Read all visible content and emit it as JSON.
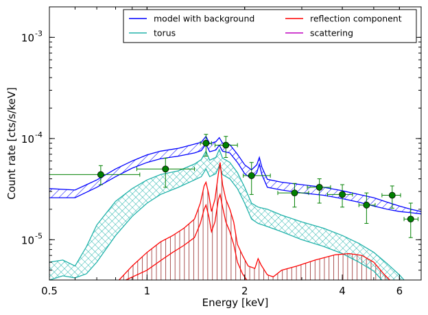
{
  "chart_data": {
    "type": "line",
    "xlabel": "Energy [keV]",
    "ylabel": "Count rate [cts/s/keV]",
    "x_scale": "log",
    "y_scale": "log",
    "xlim": [
      0.5,
      7.0
    ],
    "ylim": [
      4e-06,
      0.002
    ],
    "x_ticks": [
      {
        "value": 0.5,
        "label": "0.5"
      },
      {
        "value": 1,
        "label": "1"
      },
      {
        "value": 2,
        "label": "2"
      },
      {
        "value": 4,
        "label": "4"
      },
      {
        "value": 6,
        "label": "6"
      }
    ],
    "y_ticks": [
      {
        "value": 1e-05,
        "base": "10",
        "exp": "-5"
      },
      {
        "value": 0.0001,
        "base": "10",
        "exp": "-4"
      },
      {
        "value": 0.001,
        "base": "10",
        "exp": "-3"
      }
    ],
    "legend": {
      "placement": "top-right",
      "columns": 2,
      "entries": [
        {
          "label": "model with background",
          "color": "#0000ff"
        },
        {
          "label": "reflection component",
          "color": "#ff0000"
        },
        {
          "label": "torus",
          "color": "#20b2aa"
        },
        {
          "label": "scattering",
          "color": "#bf00bf"
        }
      ]
    },
    "colors": {
      "model": "#0000ff",
      "torus": "#20b2aa",
      "reflection": "#ff0000",
      "reflection_fill": "#a04040",
      "data": "#008000"
    },
    "data_points": [
      {
        "x": 0.72,
        "y": 4.4e-05,
        "xlo": 0.5,
        "xhi": 0.95,
        "ylo": 3.5e-05,
        "yhi": 5.4e-05
      },
      {
        "x": 1.14,
        "y": 5e-05,
        "xlo": 0.93,
        "xhi": 1.4,
        "ylo": 3.3e-05,
        "yhi": 6.4e-05
      },
      {
        "x": 1.52,
        "y": 9e-05,
        "xlo": 1.46,
        "xhi": 1.58,
        "ylo": 6.7e-05,
        "yhi": 0.00011
      },
      {
        "x": 1.75,
        "y": 8.6e-05,
        "xlo": 1.62,
        "xhi": 1.9,
        "ylo": 6.5e-05,
        "yhi": 0.000105
      },
      {
        "x": 2.1,
        "y": 4.3e-05,
        "xlo": 1.98,
        "xhi": 2.4,
        "ylo": 2.8e-05,
        "yhi": 5.8e-05
      },
      {
        "x": 2.85,
        "y": 2.9e-05,
        "xlo": 2.53,
        "xhi": 3.15,
        "ylo": 2.1e-05,
        "yhi": 3.6e-05
      },
      {
        "x": 3.4,
        "y": 3.3e-05,
        "xlo": 3.12,
        "xhi": 3.68,
        "ylo": 2.3e-05,
        "yhi": 4e-05
      },
      {
        "x": 4.0,
        "y": 2.8e-05,
        "xlo": 3.6,
        "xhi": 4.3,
        "ylo": 2.1e-05,
        "yhi": 3.5e-05
      },
      {
        "x": 4.75,
        "y": 2.2e-05,
        "xlo": 4.5,
        "xhi": 5.05,
        "ylo": 1.45e-05,
        "yhi": 2.9e-05
      },
      {
        "x": 5.7,
        "y": 2.75e-05,
        "xlo": 5.3,
        "xhi": 6.05,
        "ylo": 2.05e-05,
        "yhi": 3.4e-05
      },
      {
        "x": 6.5,
        "y": 1.6e-05,
        "xlo": 6.2,
        "xhi": 6.85,
        "ylo": 1.05e-05,
        "yhi": 2.3e-05
      }
    ],
    "series": [
      {
        "key": "model",
        "hatch": "diagonal",
        "upper": [
          [
            0.5,
            3.2e-05
          ],
          [
            0.6,
            3.1e-05
          ],
          [
            0.7,
            3.9e-05
          ],
          [
            0.8,
            5e-05
          ],
          [
            0.9,
            6e-05
          ],
          [
            1.0,
            6.9e-05
          ],
          [
            1.1,
            7.5e-05
          ],
          [
            1.25,
            8e-05
          ],
          [
            1.4,
            8.8e-05
          ],
          [
            1.47,
            9.2e-05
          ],
          [
            1.52,
            0.000105
          ],
          [
            1.56,
            8.9e-05
          ],
          [
            1.63,
            9.3e-05
          ],
          [
            1.67,
            0.000102
          ],
          [
            1.71,
            9e-05
          ],
          [
            1.8,
            8.7e-05
          ],
          [
            1.9,
            7e-05
          ],
          [
            2.0,
            5.5e-05
          ],
          [
            2.1,
            4.9e-05
          ],
          [
            2.18,
            5.5e-05
          ],
          [
            2.22,
            6.5e-05
          ],
          [
            2.26,
            5.2e-05
          ],
          [
            2.35,
            3.95e-05
          ],
          [
            2.6,
            3.7e-05
          ],
          [
            3.0,
            3.5e-05
          ],
          [
            3.5,
            3.3e-05
          ],
          [
            4.0,
            3.05e-05
          ],
          [
            4.5,
            2.8e-05
          ],
          [
            5.0,
            2.6e-05
          ],
          [
            5.5,
            2.35e-05
          ],
          [
            6.0,
            2.15e-05
          ],
          [
            6.5,
            2e-05
          ],
          [
            7.0,
            1.9e-05
          ]
        ],
        "lower": [
          [
            0.5,
            2.6e-05
          ],
          [
            0.6,
            2.6e-05
          ],
          [
            0.7,
            3.3e-05
          ],
          [
            0.8,
            4.2e-05
          ],
          [
            0.9,
            5.1e-05
          ],
          [
            1.0,
            5.8e-05
          ],
          [
            1.1,
            6.3e-05
          ],
          [
            1.25,
            6.7e-05
          ],
          [
            1.4,
            7.2e-05
          ],
          [
            1.47,
            7.6e-05
          ],
          [
            1.52,
            8.8e-05
          ],
          [
            1.56,
            7.4e-05
          ],
          [
            1.63,
            7.7e-05
          ],
          [
            1.67,
            8.6e-05
          ],
          [
            1.71,
            7.5e-05
          ],
          [
            1.8,
            7.2e-05
          ],
          [
            1.9,
            5.8e-05
          ],
          [
            2.0,
            4.5e-05
          ],
          [
            2.1,
            4e-05
          ],
          [
            2.18,
            4.6e-05
          ],
          [
            2.22,
            5.6e-05
          ],
          [
            2.26,
            4.4e-05
          ],
          [
            2.35,
            3.3e-05
          ],
          [
            2.6,
            3.1e-05
          ],
          [
            3.0,
            2.9e-05
          ],
          [
            3.5,
            2.75e-05
          ],
          [
            4.0,
            2.55e-05
          ],
          [
            4.5,
            2.35e-05
          ],
          [
            5.0,
            2.15e-05
          ],
          [
            5.5,
            2e-05
          ],
          [
            6.0,
            1.9e-05
          ],
          [
            6.5,
            1.85e-05
          ],
          [
            7.0,
            1.8e-05
          ]
        ]
      },
      {
        "key": "torus",
        "hatch": "cross",
        "upper": [
          [
            0.5,
            6e-06
          ],
          [
            0.55,
            6.3e-06
          ],
          [
            0.6,
            5.5e-06
          ],
          [
            0.65,
            8.5e-06
          ],
          [
            0.7,
            1.4e-05
          ],
          [
            0.8,
            2.4e-05
          ],
          [
            0.9,
            3.2e-05
          ],
          [
            1.0,
            3.9e-05
          ],
          [
            1.1,
            4.4e-05
          ],
          [
            1.25,
            4.8e-05
          ],
          [
            1.4,
            5.6e-05
          ],
          [
            1.47,
            6.2e-05
          ],
          [
            1.52,
            7.5e-05
          ],
          [
            1.56,
            6.1e-05
          ],
          [
            1.63,
            6.5e-05
          ],
          [
            1.67,
            7.8e-05
          ],
          [
            1.71,
            6.4e-05
          ],
          [
            1.8,
            5.8e-05
          ],
          [
            1.9,
            4.6e-05
          ],
          [
            2.0,
            3.3e-05
          ],
          [
            2.1,
            2.3e-05
          ],
          [
            2.2,
            2.1e-05
          ],
          [
            2.35,
            2e-05
          ],
          [
            2.6,
            1.75e-05
          ],
          [
            3.0,
            1.5e-05
          ],
          [
            3.5,
            1.3e-05
          ],
          [
            4.0,
            1.1e-05
          ],
          [
            4.5,
            9.2e-06
          ],
          [
            5.0,
            7.5e-06
          ],
          [
            5.5,
            5.8e-06
          ],
          [
            6.0,
            4.5e-06
          ],
          [
            6.2,
            4e-06
          ]
        ],
        "lower": [
          [
            0.5,
            4e-06
          ],
          [
            0.55,
            4.4e-06
          ],
          [
            0.6,
            4.2e-06
          ],
          [
            0.65,
            4.6e-06
          ],
          [
            0.7,
            6e-06
          ],
          [
            0.8,
            1.1e-05
          ],
          [
            0.9,
            1.7e-05
          ],
          [
            1.0,
            2.3e-05
          ],
          [
            1.1,
            2.8e-05
          ],
          [
            1.25,
            3.3e-05
          ],
          [
            1.4,
            3.9e-05
          ],
          [
            1.47,
            4.2e-05
          ],
          [
            1.52,
            5e-05
          ],
          [
            1.56,
            4.2e-05
          ],
          [
            1.63,
            4.5e-05
          ],
          [
            1.67,
            5.4e-05
          ],
          [
            1.71,
            4.4e-05
          ],
          [
            1.8,
            4e-05
          ],
          [
            1.9,
            3.2e-05
          ],
          [
            2.0,
            2.3e-05
          ],
          [
            2.1,
            1.6e-05
          ],
          [
            2.2,
            1.45e-05
          ],
          [
            2.35,
            1.35e-05
          ],
          [
            2.6,
            1.2e-05
          ],
          [
            3.0,
            1e-05
          ],
          [
            3.5,
            8.6e-06
          ],
          [
            4.0,
            7.3e-06
          ],
          [
            4.5,
            6e-06
          ],
          [
            5.0,
            4.9e-06
          ],
          [
            5.3,
            4e-06
          ]
        ]
      },
      {
        "key": "reflection",
        "line": [
          [
            0.82,
            4e-06
          ],
          [
            0.9,
            5.5e-06
          ],
          [
            1.0,
            7.5e-06
          ],
          [
            1.1,
            9.5e-06
          ],
          [
            1.2,
            1.1e-05
          ],
          [
            1.3,
            1.3e-05
          ],
          [
            1.4,
            1.6e-05
          ],
          [
            1.46,
            2.3e-05
          ],
          [
            1.5,
            3.4e-05
          ],
          [
            1.52,
            3.7e-05
          ],
          [
            1.55,
            2.8e-05
          ],
          [
            1.58,
            1.9e-05
          ],
          [
            1.62,
            2.5e-05
          ],
          [
            1.66,
            4.5e-05
          ],
          [
            1.68,
            5.8e-05
          ],
          [
            1.71,
            3.5e-05
          ],
          [
            1.75,
            2.5e-05
          ],
          [
            1.8,
            2e-05
          ],
          [
            1.85,
            1.5e-05
          ],
          [
            1.9,
            9e-06
          ],
          [
            1.97,
            7e-06
          ],
          [
            2.05,
            5.5e-06
          ],
          [
            2.15,
            5.2e-06
          ],
          [
            2.2,
            6.5e-06
          ],
          [
            2.25,
            5.6e-06
          ],
          [
            2.35,
            4.5e-06
          ],
          [
            2.45,
            4.3e-06
          ],
          [
            2.6,
            5e-06
          ],
          [
            2.9,
            5.5e-06
          ],
          [
            3.3,
            6.3e-06
          ],
          [
            3.8,
            7.1e-06
          ],
          [
            4.2,
            7.3e-06
          ],
          [
            4.6,
            7e-06
          ],
          [
            5.0,
            6e-06
          ],
          [
            5.4,
            4.5e-06
          ],
          [
            5.6,
            4e-06
          ]
        ],
        "lower": [
          [
            0.86,
            4e-06
          ],
          [
            1.0,
            5e-06
          ],
          [
            1.1,
            6.2e-06
          ],
          [
            1.2,
            7.5e-06
          ],
          [
            1.3,
            8.8e-06
          ],
          [
            1.4,
            1.05e-05
          ],
          [
            1.46,
            1.45e-05
          ],
          [
            1.5,
            2e-05
          ],
          [
            1.52,
            2.2e-05
          ],
          [
            1.55,
            1.7e-05
          ],
          [
            1.58,
            1.2e-05
          ],
          [
            1.62,
            1.5e-05
          ],
          [
            1.66,
            2.5e-05
          ],
          [
            1.68,
            2.8e-05
          ],
          [
            1.71,
            2.1e-05
          ],
          [
            1.75,
            1.5e-05
          ],
          [
            1.8,
            1.2e-05
          ],
          [
            1.85,
            9e-06
          ],
          [
            1.9,
            6e-06
          ],
          [
            1.97,
            4.6e-06
          ],
          [
            2.03,
            4e-06
          ]
        ]
      }
    ]
  }
}
